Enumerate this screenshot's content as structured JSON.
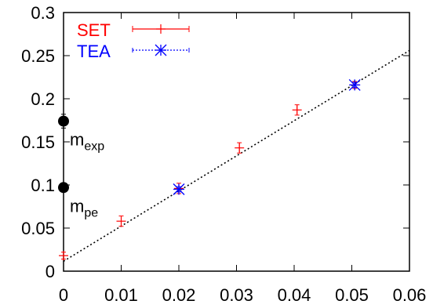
{
  "chart_data": {
    "type": "scatter",
    "xlim": [
      0,
      0.06
    ],
    "ylim": [
      0,
      0.3
    ],
    "xticks": [
      "0",
      "0.01",
      "0.02",
      "0.03",
      "0.04",
      "0.05",
      "0.06"
    ],
    "yticks": [
      "0",
      "0.05",
      "0.1",
      "0.15",
      "0.2",
      "0.25",
      "0.3"
    ],
    "grid": false,
    "legend_position": "top-left",
    "series": [
      {
        "name": "SET",
        "color": "#ff0000",
        "marker": "plus",
        "points": [
          {
            "x": 0.0,
            "y": 0.018,
            "err": 0.004
          },
          {
            "x": 0.01,
            "y": 0.058,
            "err": 0.006
          },
          {
            "x": 0.02,
            "y": 0.096,
            "err": 0.006
          },
          {
            "x": 0.0305,
            "y": 0.143,
            "err": 0.006
          },
          {
            "x": 0.0405,
            "y": 0.187,
            "err": 0.006
          },
          {
            "x": 0.0505,
            "y": 0.216,
            "err": 0.004
          }
        ]
      },
      {
        "name": "TEA",
        "color": "#0000ff",
        "marker": "star",
        "points": [
          {
            "x": 0.02,
            "y": 0.095,
            "err": 0.003
          },
          {
            "x": 0.0505,
            "y": 0.216,
            "err": 0.003
          }
        ]
      }
    ],
    "fit_line": {
      "x0": 0,
      "y0": 0.0115,
      "x1": 0.06,
      "y1": 0.256,
      "style": "dotted"
    },
    "annotations": [
      {
        "base": "m",
        "sub": "exp",
        "x": 0,
        "y": 0.174,
        "err": 0.008
      },
      {
        "base": "m",
        "sub": "pe",
        "x": 0,
        "y": 0.097,
        "err": 0.003
      }
    ]
  }
}
